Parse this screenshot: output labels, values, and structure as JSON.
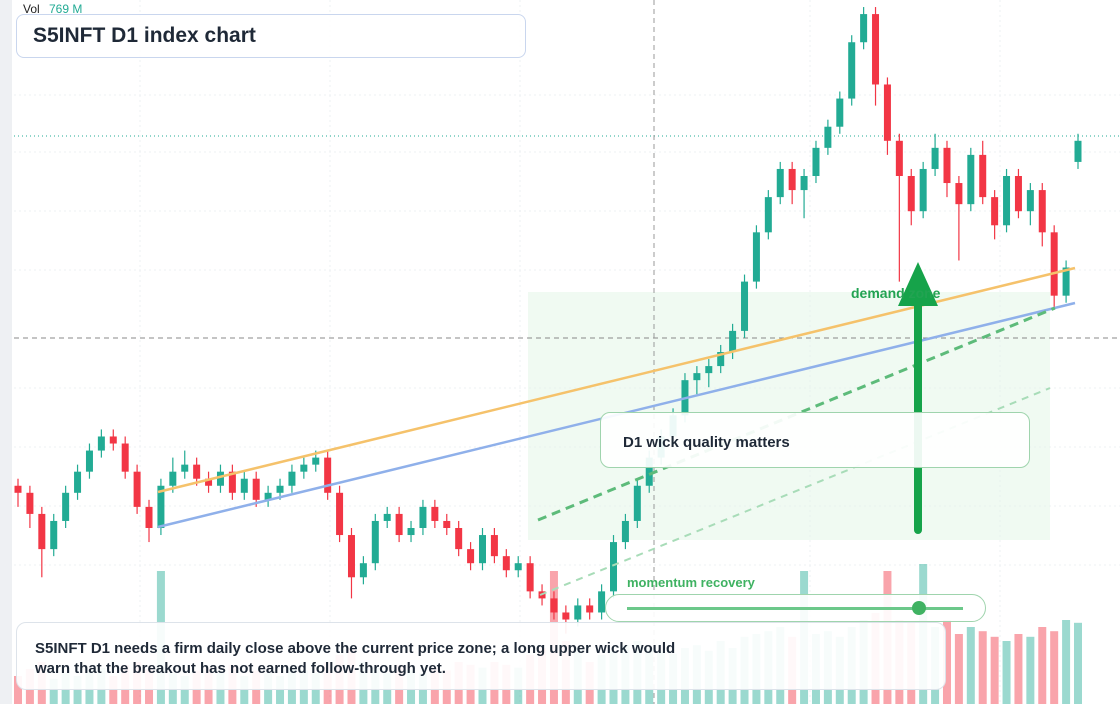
{
  "chart_data": {
    "type": "candlestick",
    "title": "S5INFT D1 index chart",
    "volume_label": "Vol",
    "volume_value": "769 M",
    "up_color": "#22ab94",
    "down_color": "#f23645",
    "ylim": [
      0,
      100
    ],
    "volume_ylim": [
      0,
      100
    ],
    "candles": [
      [
        31,
        32,
        28,
        30
      ],
      [
        30,
        31,
        25,
        27
      ],
      [
        27,
        28,
        18,
        22
      ],
      [
        22,
        27,
        21,
        26
      ],
      [
        26,
        31,
        25,
        30
      ],
      [
        30,
        34,
        29,
        33
      ],
      [
        33,
        37,
        32,
        36
      ],
      [
        36,
        39,
        35,
        38
      ],
      [
        38,
        39,
        36,
        37
      ],
      [
        37,
        38,
        32,
        33
      ],
      [
        33,
        34,
        27,
        28
      ],
      [
        28,
        29,
        23,
        25
      ],
      [
        25,
        32,
        24,
        31
      ],
      [
        31,
        35,
        30,
        33
      ],
      [
        33,
        36,
        32,
        34
      ],
      [
        34,
        35,
        31,
        32
      ],
      [
        32,
        33,
        30,
        31
      ],
      [
        31,
        34,
        30,
        33
      ],
      [
        33,
        34,
        29,
        30
      ],
      [
        30,
        33,
        29,
        32
      ],
      [
        32,
        33,
        28,
        29
      ],
      [
        29,
        31,
        28,
        30
      ],
      [
        30,
        32,
        29,
        31
      ],
      [
        31,
        34,
        30,
        33
      ],
      [
        33,
        35,
        32,
        34
      ],
      [
        34,
        36,
        33,
        35
      ],
      [
        35,
        36,
        29,
        30
      ],
      [
        30,
        31,
        23,
        24
      ],
      [
        24,
        25,
        15,
        18
      ],
      [
        18,
        21,
        17,
        20
      ],
      [
        20,
        27,
        19,
        26
      ],
      [
        26,
        28,
        25,
        27
      ],
      [
        27,
        28,
        23,
        24
      ],
      [
        24,
        26,
        23,
        25
      ],
      [
        25,
        29,
        24,
        28
      ],
      [
        28,
        29,
        25,
        26
      ],
      [
        26,
        27,
        24,
        25
      ],
      [
        25,
        26,
        21,
        22
      ],
      [
        22,
        23,
        19,
        20
      ],
      [
        20,
        25,
        19,
        24
      ],
      [
        24,
        25,
        20,
        21
      ],
      [
        21,
        22,
        18,
        19
      ],
      [
        19,
        21,
        18,
        20
      ],
      [
        20,
        21,
        15,
        16
      ],
      [
        16,
        17,
        14,
        15
      ],
      [
        15,
        16,
        12,
        13
      ],
      [
        13,
        14,
        10,
        12
      ],
      [
        12,
        15,
        11,
        14
      ],
      [
        14,
        15,
        12,
        13
      ],
      [
        13,
        17,
        12,
        16
      ],
      [
        16,
        24,
        15,
        23
      ],
      [
        23,
        27,
        22,
        26
      ],
      [
        26,
        32,
        25,
        31
      ],
      [
        31,
        36,
        30,
        35
      ],
      [
        35,
        39,
        34,
        38
      ],
      [
        38,
        42,
        37,
        41
      ],
      [
        41,
        47,
        40,
        46
      ],
      [
        46,
        48,
        44,
        47
      ],
      [
        47,
        49,
        45,
        48
      ],
      [
        48,
        51,
        47,
        50
      ],
      [
        50,
        54,
        49,
        53
      ],
      [
        53,
        61,
        52,
        60
      ],
      [
        60,
        68,
        59,
        67
      ],
      [
        67,
        73,
        66,
        72
      ],
      [
        72,
        77,
        71,
        76
      ],
      [
        76,
        77,
        71,
        73
      ],
      [
        73,
        76,
        69,
        75
      ],
      [
        75,
        80,
        74,
        79
      ],
      [
        79,
        83,
        78,
        82
      ],
      [
        82,
        87,
        81,
        86
      ],
      [
        86,
        95,
        85,
        94
      ],
      [
        94,
        99,
        93,
        98
      ],
      [
        98,
        99,
        85,
        88
      ],
      [
        88,
        89,
        78,
        80
      ],
      [
        80,
        81,
        60,
        75
      ],
      [
        75,
        76,
        68,
        70
      ],
      [
        70,
        77,
        69,
        76
      ],
      [
        76,
        81,
        75,
        79
      ],
      [
        79,
        80,
        72,
        74
      ],
      [
        74,
        75,
        63,
        71
      ],
      [
        71,
        79,
        70,
        78
      ],
      [
        78,
        80,
        71,
        72
      ],
      [
        72,
        73,
        66,
        68
      ],
      [
        68,
        76,
        67,
        75
      ],
      [
        75,
        76,
        69,
        70
      ],
      [
        70,
        74,
        68,
        73
      ],
      [
        73,
        74,
        65,
        67
      ],
      [
        67,
        68,
        56,
        58
      ],
      [
        58,
        63,
        57,
        62
      ],
      [
        77,
        81,
        76,
        80
      ]
    ],
    "volume": [
      20,
      25,
      30,
      18,
      22,
      20,
      24,
      26,
      20,
      28,
      30,
      25,
      95,
      22,
      20,
      24,
      26,
      22,
      28,
      20,
      24,
      22,
      20,
      26,
      24,
      22,
      30,
      35,
      40,
      30,
      26,
      22,
      28,
      24,
      22,
      26,
      24,
      30,
      28,
      26,
      30,
      28,
      26,
      35,
      40,
      95,
      45,
      40,
      30,
      35,
      38,
      42,
      45,
      40,
      38,
      36,
      40,
      42,
      38,
      45,
      40,
      48,
      50,
      52,
      55,
      48,
      95,
      50,
      52,
      48,
      55,
      60,
      65,
      95,
      60,
      58,
      100,
      55,
      60,
      50,
      55,
      52,
      48,
      45,
      50,
      48,
      55,
      52,
      60,
      58
    ],
    "annotations": {
      "zone_label": "demand zone",
      "callout": "D1 wick quality matters",
      "slider_label": "momentum recovery",
      "caption": "S5INFT D1 needs a firm daily close above the current price zone; a long upper wick would warn that the breakout has not earned follow-through yet."
    }
  }
}
